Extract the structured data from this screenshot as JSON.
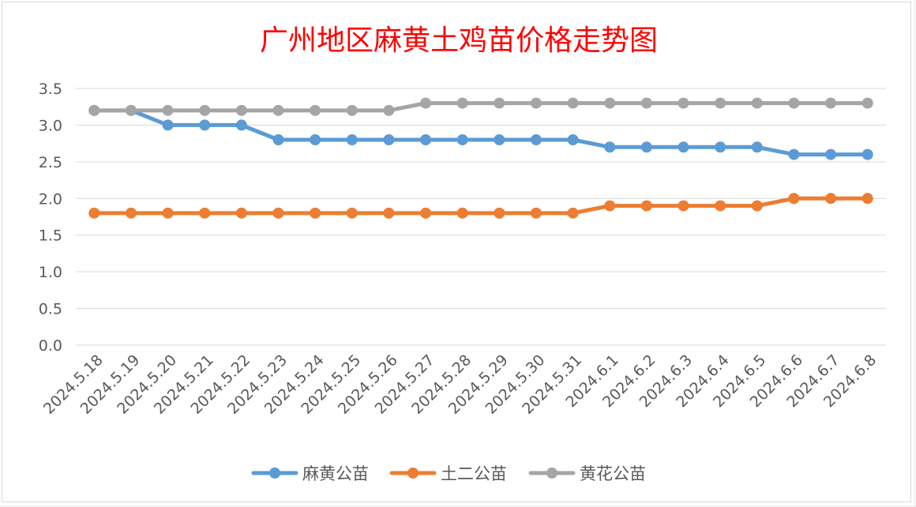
{
  "chart_data": {
    "type": "line",
    "title": "广州地区麻黄土鸡苗价格走势图",
    "xlabel": "",
    "ylabel": "",
    "ylim": [
      0,
      3.5
    ],
    "yticks": [
      "0.0",
      "0.5",
      "1.0",
      "1.5",
      "2.0",
      "2.5",
      "3.0",
      "3.5"
    ],
    "grid": true,
    "legend_position": "bottom",
    "categories": [
      "2024.5.18",
      "2024.5.19",
      "2024.5.20",
      "2024.5.21",
      "2024.5.22",
      "2024.5.23",
      "2024.5.24",
      "2024.5.25",
      "2024.5.26",
      "2024.5.27",
      "2024.5.28",
      "2024.5.29",
      "2024.5.30",
      "2024.5.31",
      "2024.6.1",
      "2024.6.2",
      "2024.6.3",
      "2024.6.4",
      "2024.6.5",
      "2024.6.6",
      "2024.6.7",
      "2024.6.8"
    ],
    "series": [
      {
        "name": "麻黄公苗",
        "color": "#5b9bd5",
        "values": [
          3.2,
          3.2,
          3.0,
          3.0,
          3.0,
          2.8,
          2.8,
          2.8,
          2.8,
          2.8,
          2.8,
          2.8,
          2.8,
          2.8,
          2.7,
          2.7,
          2.7,
          2.7,
          2.7,
          2.6,
          2.6,
          2.6
        ]
      },
      {
        "name": "土二公苗",
        "color": "#ed7d31",
        "values": [
          1.8,
          1.8,
          1.8,
          1.8,
          1.8,
          1.8,
          1.8,
          1.8,
          1.8,
          1.8,
          1.8,
          1.8,
          1.8,
          1.8,
          1.9,
          1.9,
          1.9,
          1.9,
          1.9,
          2.0,
          2.0,
          2.0
        ]
      },
      {
        "name": "黄花公苗",
        "color": "#a5a5a5",
        "values": [
          3.2,
          3.2,
          3.2,
          3.2,
          3.2,
          3.2,
          3.2,
          3.2,
          3.2,
          3.3,
          3.3,
          3.3,
          3.3,
          3.3,
          3.3,
          3.3,
          3.3,
          3.3,
          3.3,
          3.3,
          3.3,
          3.3
        ]
      }
    ]
  }
}
